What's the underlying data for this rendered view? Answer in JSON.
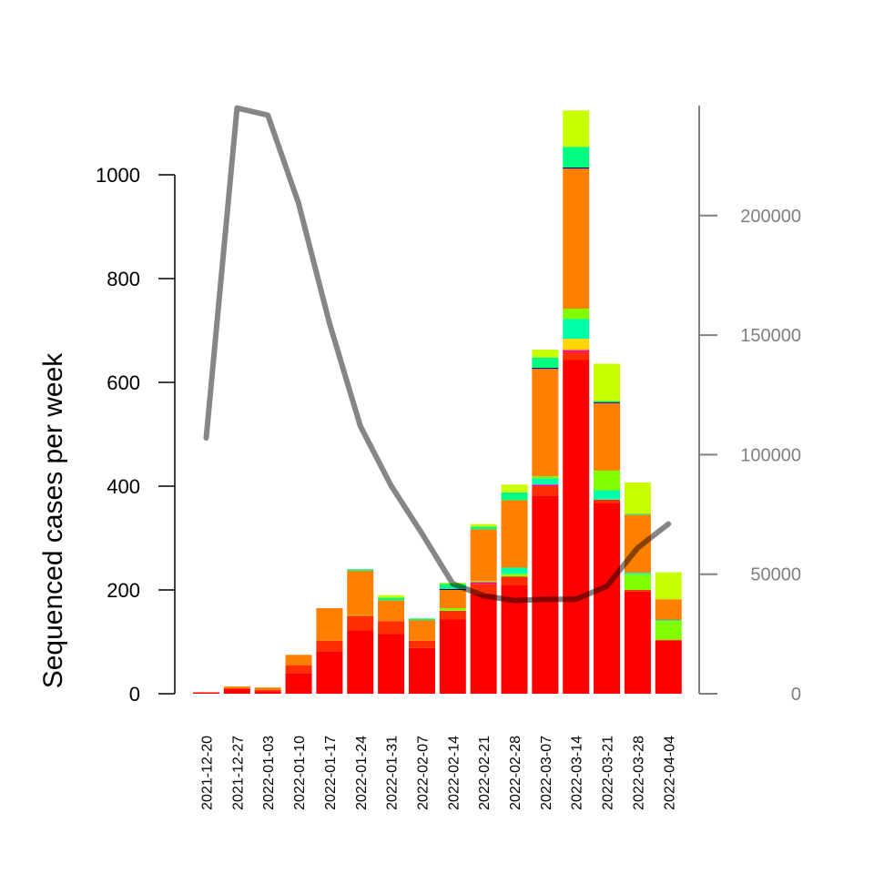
{
  "chart_data": {
    "type": "bar",
    "stacked": true,
    "ylabel": "Sequenced cases per week",
    "xlabel": "",
    "ylim": [
      0,
      1000
    ],
    "y_ticks": [
      0,
      200,
      400,
      600,
      800,
      1000
    ],
    "y2lim": [
      0,
      246000
    ],
    "y2_ticks": [
      0,
      50000,
      100000,
      150000,
      200000
    ],
    "grid": false,
    "categories": [
      "2021-12-20",
      "2021-12-27",
      "2022-01-03",
      "2022-01-10",
      "2022-01-17",
      "2022-01-24",
      "2022-01-31",
      "2022-02-07",
      "2022-02-14",
      "2022-02-21",
      "2022-02-28",
      "2022-03-07",
      "2022-03-14",
      "2022-03-21",
      "2022-03-28",
      "2022-04-04"
    ],
    "series": [
      {
        "color": "#ff0000",
        "values": [
          2,
          9,
          5,
          40,
          82,
          122,
          115,
          88,
          143,
          192,
          210,
          382,
          643,
          368,
          197,
          102
        ]
      },
      {
        "color": "#ff2e00",
        "values": [
          1,
          2,
          2,
          15,
          20,
          28,
          25,
          14,
          17,
          20,
          16,
          18,
          15,
          6,
          3,
          2
        ]
      },
      {
        "color": "#ff00a0",
        "values": [
          0,
          0,
          0,
          0,
          0,
          0,
          0,
          0,
          0,
          3,
          0,
          3,
          4,
          0,
          0,
          0
        ]
      },
      {
        "color": "#ffa500",
        "values": [
          0,
          0,
          0,
          0,
          0,
          2,
          0,
          0,
          0,
          0,
          0,
          0,
          2,
          0,
          0,
          0
        ]
      },
      {
        "color": "#ffd700",
        "values": [
          0,
          0,
          0,
          0,
          0,
          0,
          0,
          0,
          0,
          0,
          0,
          0,
          20,
          0,
          0,
          0
        ]
      },
      {
        "color": "#7fff00",
        "values": [
          0,
          0,
          0,
          0,
          0,
          0,
          0,
          0,
          5,
          2,
          5,
          0,
          0,
          0,
          30,
          36
        ]
      },
      {
        "color": "#00ffaa",
        "values": [
          0,
          0,
          0,
          0,
          0,
          0,
          0,
          0,
          0,
          0,
          12,
          12,
          38,
          18,
          3,
          2
        ]
      },
      {
        "color": "#7fff00",
        "values": [
          0,
          0,
          0,
          0,
          0,
          0,
          0,
          0,
          0,
          0,
          0,
          4,
          20,
          38,
          0,
          0
        ]
      },
      {
        "color": "#ff8000",
        "values": [
          0,
          3,
          5,
          20,
          63,
          85,
          40,
          40,
          35,
          100,
          130,
          207,
          270,
          130,
          112,
          40
        ]
      },
      {
        "color": "#000080",
        "values": [
          0,
          0,
          0,
          0,
          0,
          0,
          0,
          0,
          2,
          0,
          0,
          2,
          2,
          2,
          0,
          0
        ]
      },
      {
        "color": "#00ff80",
        "values": [
          0,
          0,
          0,
          0,
          0,
          3,
          5,
          3,
          10,
          5,
          15,
          20,
          40,
          2,
          2,
          0
        ]
      },
      {
        "color": "#c8ff00",
        "values": [
          0,
          0,
          0,
          0,
          0,
          0,
          5,
          0,
          2,
          5,
          15,
          15,
          70,
          72,
          60,
          52
        ]
      }
    ],
    "line": {
      "color": "#808080",
      "axis": "right",
      "values": [
        107000,
        245000,
        242000,
        205000,
        155000,
        112000,
        87000,
        67000,
        46000,
        41000,
        39000,
        39500,
        39500,
        45000,
        61000,
        71000
      ]
    }
  }
}
